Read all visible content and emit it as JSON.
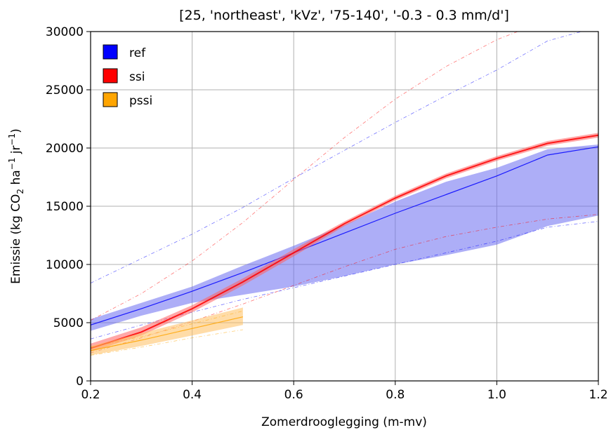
{
  "chart_data": {
    "type": "line",
    "title": "[25, 'northeast', 'kVz', '75-140', '-0.3 - 0.3 mm/d']",
    "xlabel": "Zomerdrooglegging (m-mv)",
    "ylabel_main": "Emissie (kg CO",
    "ylabel_sub": "2",
    "ylabel_mid": " ha",
    "ylabel_sup1": "−1",
    "ylabel_mid2": " jr",
    "ylabel_sup2": "−1",
    "ylabel_end": ")",
    "xlim": [
      0.2,
      1.2
    ],
    "ylim": [
      0,
      30000
    ],
    "grid": true,
    "legend_position": "top-left",
    "x_ticks": [
      {
        "v": 0.2,
        "label": "0.2"
      },
      {
        "v": 0.4,
        "label": "0.4"
      },
      {
        "v": 0.6,
        "label": "0.6"
      },
      {
        "v": 0.8,
        "label": "0.8"
      },
      {
        "v": 1.0,
        "label": "1.0"
      },
      {
        "v": 1.2,
        "label": "1.2"
      }
    ],
    "y_ticks": [
      {
        "v": 0,
        "label": "0"
      },
      {
        "v": 5000,
        "label": "5000"
      },
      {
        "v": 10000,
        "label": "10000"
      },
      {
        "v": 15000,
        "label": "15000"
      },
      {
        "v": 20000,
        "label": "20000"
      },
      {
        "v": 25000,
        "label": "25000"
      },
      {
        "v": 30000,
        "label": "30000"
      }
    ],
    "series": [
      {
        "name": "ref",
        "color": "#0000ff",
        "fill_color": "#6a6cf0",
        "x": [
          0.2,
          0.3,
          0.4,
          0.5,
          0.6,
          0.7,
          0.8,
          0.9,
          1.0,
          1.1,
          1.2
        ],
        "y": [
          4800,
          6200,
          7700,
          9300,
          11000,
          12700,
          14400,
          16000,
          17600,
          19400,
          20100
        ],
        "band_lower": [
          4300,
          5600,
          6700,
          7400,
          8100,
          9000,
          10000,
          10800,
          11700,
          13300,
          14200
        ],
        "band_upper": [
          5300,
          6700,
          8100,
          9900,
          11600,
          13400,
          15400,
          17100,
          18300,
          19900,
          20300
        ],
        "dashed_upper": [
          8400,
          10500,
          12600,
          14900,
          17400,
          19800,
          22200,
          24500,
          26700,
          29200,
          30400
        ],
        "dashed_lower": [
          3600,
          4800,
          5900,
          7000,
          8000,
          9000,
          10000,
          11000,
          12000,
          13200,
          13700
        ]
      },
      {
        "name": "ssi",
        "color": "#ff0000",
        "fill_color": "#ff6060",
        "x": [
          0.2,
          0.3,
          0.4,
          0.5,
          0.6,
          0.7,
          0.8,
          0.9,
          1.0,
          1.1,
          1.2
        ],
        "y": [
          2800,
          4200,
          6200,
          8500,
          11000,
          13500,
          15700,
          17600,
          19100,
          20400,
          21100
        ],
        "band_lower": [
          2500,
          3900,
          5900,
          8200,
          10700,
          13300,
          15500,
          17400,
          18900,
          20200,
          20900
        ],
        "band_upper": [
          3200,
          4600,
          6500,
          8800,
          11300,
          13700,
          15900,
          17800,
          19300,
          20600,
          21300
        ],
        "dashed_upper": [
          5200,
          7500,
          10300,
          13600,
          17300,
          20900,
          24200,
          27000,
          29300,
          31000,
          31500
        ],
        "dashed_lower": [
          2400,
          3700,
          5100,
          6600,
          8200,
          9800,
          11300,
          12400,
          13200,
          13900,
          14300
        ]
      },
      {
        "name": "pssi",
        "color": "#ffa500",
        "fill_color": "#ffc060",
        "x": [
          0.2,
          0.3,
          0.4,
          0.5
        ],
        "y": [
          2600,
          3500,
          4500,
          5500
        ],
        "band_lower": [
          2200,
          3000,
          3900,
          4800
        ],
        "band_upper": [
          3000,
          4100,
          5200,
          6300
        ],
        "dashed_upper": [
          2900,
          3800,
          4900,
          6000
        ],
        "dashed_lower": [
          2200,
          2900,
          3700,
          4400
        ]
      }
    ]
  }
}
